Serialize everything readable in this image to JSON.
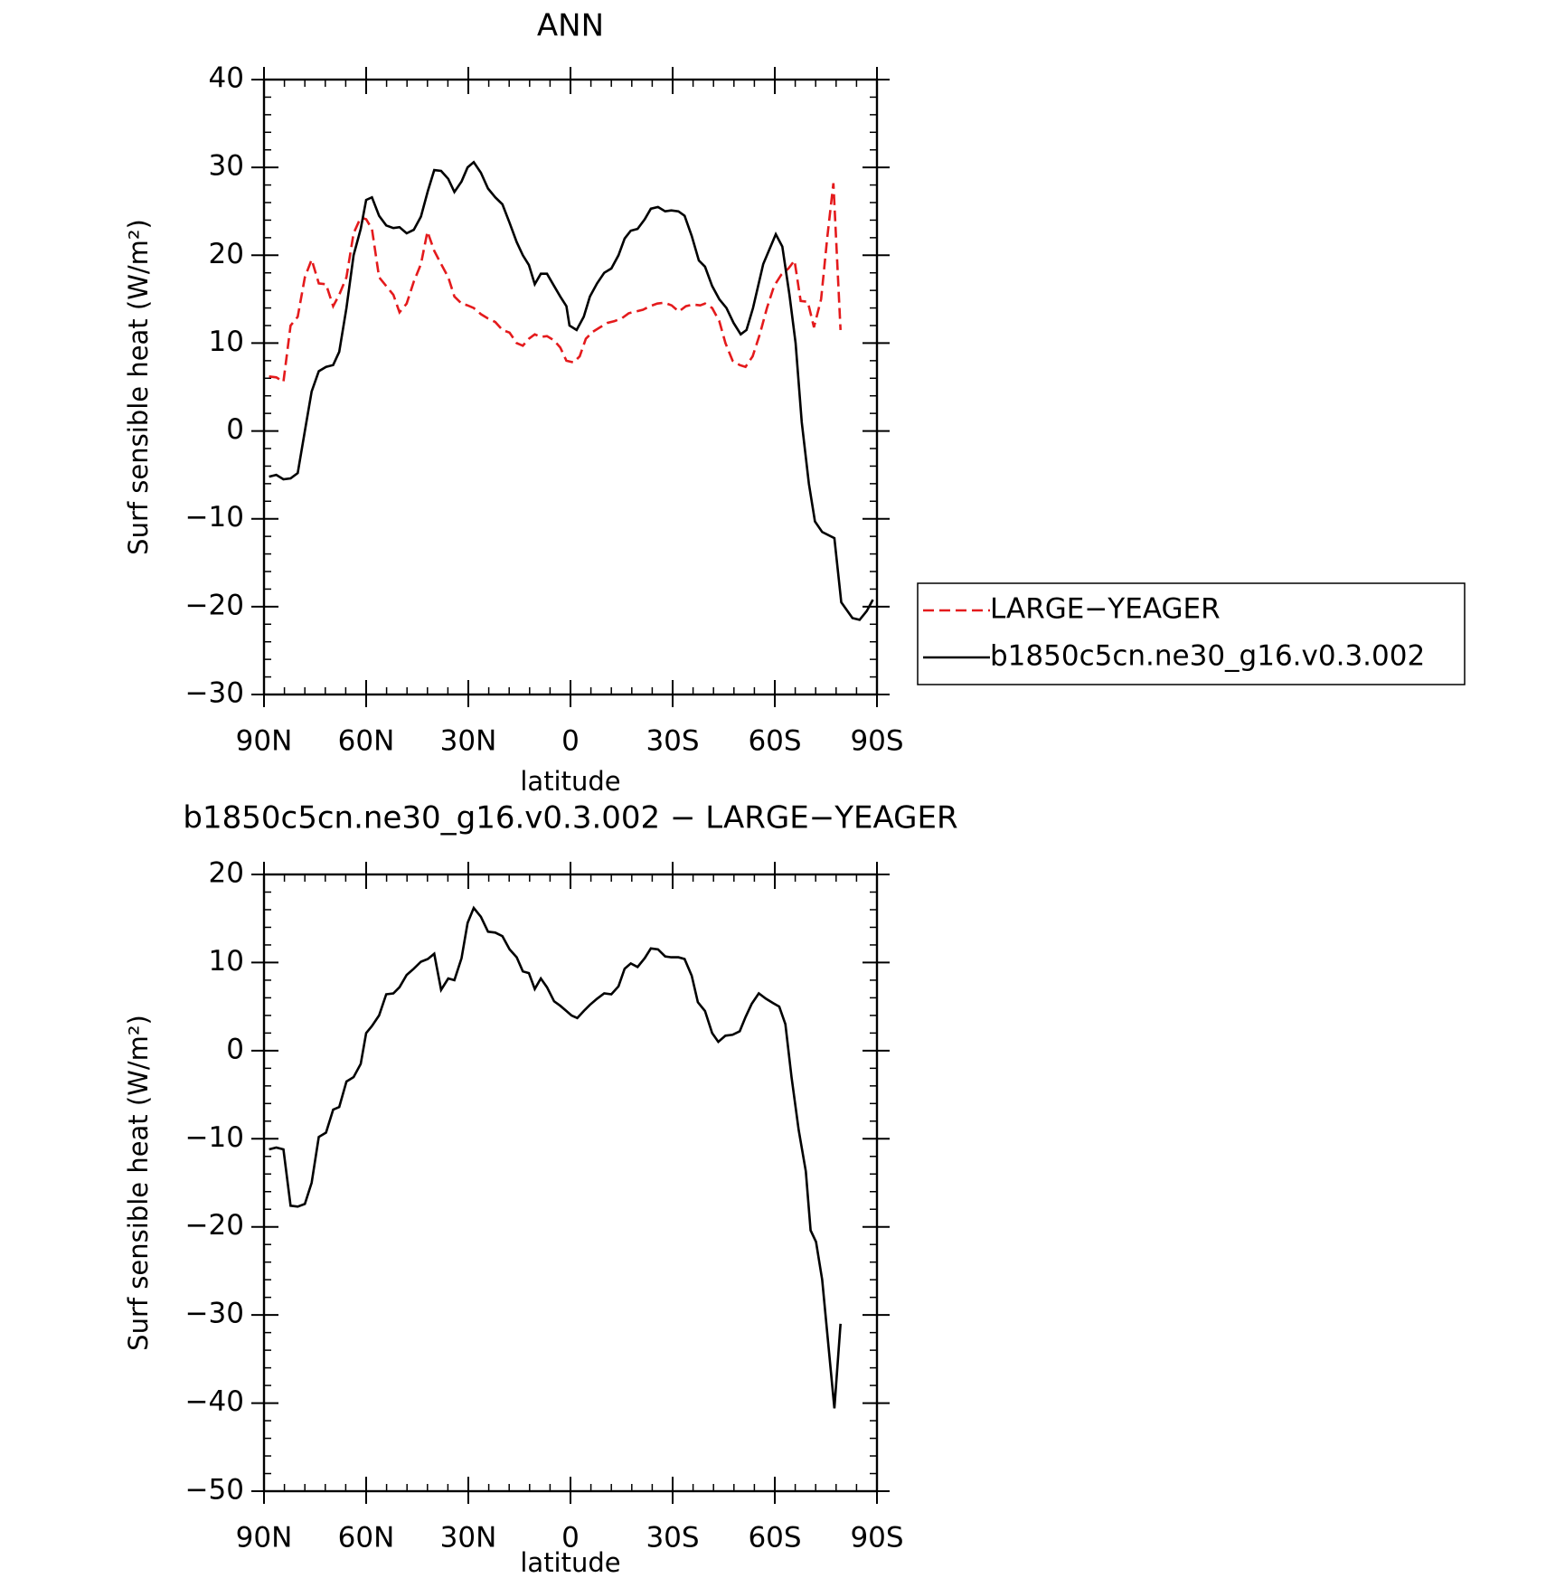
{
  "chart_data": [
    {
      "type": "line",
      "title": "ANN",
      "xlabel": "latitude",
      "ylabel": "Surf sensible heat (W/m²)",
      "xlim": [
        90,
        -90
      ],
      "xticks": [
        {
          "value": 90,
          "label": "90N"
        },
        {
          "value": 60,
          "label": "60N"
        },
        {
          "value": 30,
          "label": "30N"
        },
        0,
        {
          "value": -30,
          "label": "30S"
        },
        {
          "value": -60,
          "label": "60S"
        },
        {
          "value": -90,
          "label": "90S"
        }
      ],
      "ylim": [
        -30,
        40
      ],
      "yticks": [
        {
          "value": -30,
          "label": "−30"
        },
        {
          "value": -20,
          "label": "−20"
        },
        {
          "value": -10,
          "label": "−10"
        },
        0,
        10,
        20,
        30,
        40
      ],
      "legend": "right",
      "series": [
        {
          "name": "LARGE−YEAGER",
          "color": "#e41a1c",
          "line_style": "dashed",
          "x": [
            88.5,
            86.4,
            84.3,
            82.2,
            80.1,
            78,
            76,
            73.9,
            71.8,
            69.7,
            67.9,
            65.8,
            63.7,
            61.6,
            60,
            58.3,
            56.2,
            54.1,
            52,
            50.2,
            48.1,
            46,
            43.9,
            42,
            40,
            38,
            35.9,
            34.1,
            32,
            30.2,
            28.4,
            26.3,
            24.2,
            22.1,
            20,
            17.9,
            15.8,
            14,
            12.2,
            10.5,
            8.7,
            6.9,
            4.8,
            3,
            1.2,
            -0.9,
            -2.7,
            -4.5,
            -6.6,
            -8.7,
            -10.8,
            -12.9,
            -15,
            -17.1,
            -19.2,
            -21.3,
            -23.4,
            -25.5,
            -27.6,
            -29.7,
            -31.8,
            -33.9,
            -36,
            -38.1,
            -39.5,
            -41.6,
            -43.7,
            -45.5,
            -47.6,
            -49.7,
            -51.4,
            -53.5,
            -55.6,
            -57.7,
            -59.8,
            -61.9,
            -64,
            -65.8,
            -67.6,
            -69.7,
            -71.5,
            -73.6,
            -75.4,
            -77.2,
            -79.3
          ],
          "values": [
            6.2,
            6.1,
            5.6,
            12,
            13,
            17.5,
            19.5,
            16.8,
            16.7,
            14.2,
            15.5,
            17.5,
            22.5,
            24.3,
            24.1,
            23,
            17.5,
            16.5,
            15.5,
            13.5,
            14.5,
            17,
            19,
            22.7,
            20.5,
            19,
            17.5,
            15.3,
            14.5,
            14.3,
            14,
            13.3,
            12.8,
            12.4,
            11.5,
            11.2,
            10,
            9.7,
            10.5,
            11,
            10.7,
            10.8,
            10.3,
            9.5,
            8,
            7.8,
            8.5,
            10.5,
            11.3,
            11.8,
            12.3,
            12.5,
            12.8,
            13.4,
            13.6,
            13.8,
            14.2,
            14.5,
            14.6,
            14.3,
            13.6,
            14.2,
            14.4,
            14.3,
            14.5,
            14,
            12.5,
            10,
            8,
            7.5,
            7.3,
            8.5,
            11,
            14,
            16.5,
            17.8,
            18.5,
            19.4,
            14.8,
            14.7,
            11.8,
            15,
            22,
            28.2,
            11.5
          ]
        },
        {
          "name": "b1850c5cn.ne30_g16.v0.3.002",
          "color": "#000000",
          "line_style": "solid",
          "x": [
            88.5,
            86.4,
            84.3,
            82.2,
            80.1,
            78,
            76,
            73.9,
            71.8,
            69.7,
            67.9,
            65.8,
            63.7,
            61.6,
            60,
            58.3,
            56.2,
            54.1,
            52,
            50.2,
            48.1,
            46,
            43.9,
            41.9,
            40,
            38,
            35.9,
            34.1,
            32,
            30.2,
            28.4,
            26.3,
            24.2,
            22.1,
            20,
            17.9,
            15.8,
            14,
            12.2,
            10.5,
            8.7,
            6.9,
            4.8,
            3,
            1.2,
            0.3,
            -1.8,
            -3.9,
            -5.7,
            -7.8,
            -9.9,
            -12,
            -14.1,
            -15.9,
            -17.7,
            -19.7,
            -21.8,
            -23.6,
            -25.7,
            -27.8,
            -29.6,
            -31.7,
            -33.5,
            -35.6,
            -37.7,
            -39.5,
            -41.6,
            -43.7,
            -45.8,
            -47.9,
            -50,
            -51.7,
            -53.6,
            -56.6,
            -60.3,
            -62.2,
            -64.3,
            -66.1,
            -67.9,
            -70,
            -71.8,
            -73.9,
            -77.5,
            -79.5,
            -82.8,
            -84.9,
            -87,
            -88.8
          ],
          "values": [
            -5.2,
            -5,
            -5.5,
            -5.4,
            -4.8,
            0,
            4.5,
            6.8,
            7.3,
            7.5,
            9,
            14,
            20,
            23,
            26.3,
            26.6,
            24.5,
            23.4,
            23.1,
            23.2,
            22.5,
            22.9,
            24.4,
            27.3,
            29.7,
            29.6,
            28.7,
            27.2,
            28.4,
            30,
            30.6,
            29.4,
            27.6,
            26.6,
            25.8,
            23.7,
            21.5,
            20,
            18.9,
            16.7,
            17.9,
            17.9,
            16.5,
            15.3,
            14.2,
            12,
            11.5,
            13,
            15.3,
            16.8,
            18,
            18.5,
            20,
            21.9,
            22.8,
            23,
            24.1,
            25.3,
            25.5,
            25,
            25.1,
            25,
            24.5,
            22.2,
            19.4,
            18.7,
            16.5,
            15,
            14,
            12.3,
            11,
            11.5,
            14,
            19,
            22.4,
            21,
            15.5,
            10,
            1,
            -6,
            -10.3,
            -11.5,
            -12.2,
            -19.5,
            -21.3,
            -21.5,
            -20.5,
            -19.2
          ]
        }
      ]
    },
    {
      "type": "line",
      "title": "b1850c5cn.ne30_g16.v0.3.002 − LARGE−YEAGER",
      "xlabel": "latitude",
      "ylabel": "Surf sensible heat (W/m²)",
      "xlim": [
        90,
        -90
      ],
      "xticks": [
        {
          "value": 90,
          "label": "90N"
        },
        {
          "value": 60,
          "label": "60N"
        },
        {
          "value": 30,
          "label": "30N"
        },
        0,
        {
          "value": -30,
          "label": "30S"
        },
        {
          "value": -60,
          "label": "60S"
        },
        {
          "value": -90,
          "label": "90S"
        }
      ],
      "ylim": [
        -50,
        20
      ],
      "yticks": [
        {
          "value": -50,
          "label": "−50"
        },
        {
          "value": -40,
          "label": "−40"
        },
        {
          "value": -30,
          "label": "−30"
        },
        {
          "value": -20,
          "label": "−20"
        },
        {
          "value": -10,
          "label": "−10"
        },
        0,
        10,
        20
      ],
      "series": [
        {
          "color": "#000000",
          "line_style": "solid",
          "x": [
            88.5,
            86.4,
            84.3,
            82.2,
            80.1,
            78,
            76,
            73.9,
            71.8,
            69.7,
            67.9,
            65.8,
            63.7,
            61.6,
            60,
            58.3,
            56.2,
            54.1,
            52,
            50.2,
            48.1,
            46,
            43.9,
            41.9,
            40,
            38,
            35.9,
            34.1,
            32,
            30.2,
            28.4,
            26.3,
            24.2,
            22.1,
            20,
            17.9,
            15.8,
            14,
            12.2,
            10.5,
            8.7,
            6.9,
            4.8,
            3,
            1.2,
            -0.3,
            -2,
            -3.9,
            -5.7,
            -7.8,
            -9.9,
            -12,
            -14.1,
            -15.9,
            -17.7,
            -19.7,
            -21.8,
            -23.6,
            -25.7,
            -27.8,
            -29.6,
            -31.7,
            -33.5,
            -35.6,
            -37.4,
            -39.5,
            -41.6,
            -43.4,
            -45.5,
            -47.6,
            -49.7,
            -51.4,
            -53.2,
            -55.3,
            -57.4,
            -59.5,
            -61.3,
            -63.1,
            -64.9,
            -67,
            -69.1,
            -70.5,
            -72.1,
            -73.9,
            -77.5,
            -79.3
          ],
          "values": [
            -11.2,
            -11,
            -11.2,
            -17.6,
            -17.7,
            -17.4,
            -15,
            -9.8,
            -9.3,
            -6.7,
            -6.4,
            -3.5,
            -3,
            -1.5,
            2,
            2.8,
            4,
            6.4,
            6.5,
            7.2,
            8.6,
            9.3,
            10.1,
            10.4,
            11,
            6.9,
            8.2,
            8,
            10.5,
            14.5,
            16.2,
            15.2,
            13.5,
            13.4,
            13,
            11.5,
            10.6,
            9,
            8.8,
            7,
            8.2,
            7.2,
            5.6,
            5.1,
            4.5,
            4,
            3.7,
            4.5,
            5.2,
            5.9,
            6.5,
            6.4,
            7.3,
            9.3,
            9.9,
            9.5,
            10.5,
            11.6,
            11.5,
            10.7,
            10.6,
            10.6,
            10.4,
            8.5,
            5.5,
            4.5,
            2,
            1,
            1.7,
            1.8,
            2.2,
            3.8,
            5.3,
            6.5,
            5.9,
            5.4,
            5,
            3,
            -3,
            -9,
            -13.7,
            -20.4,
            -21.7,
            -26,
            -40.6,
            -31
          ]
        }
      ]
    }
  ]
}
